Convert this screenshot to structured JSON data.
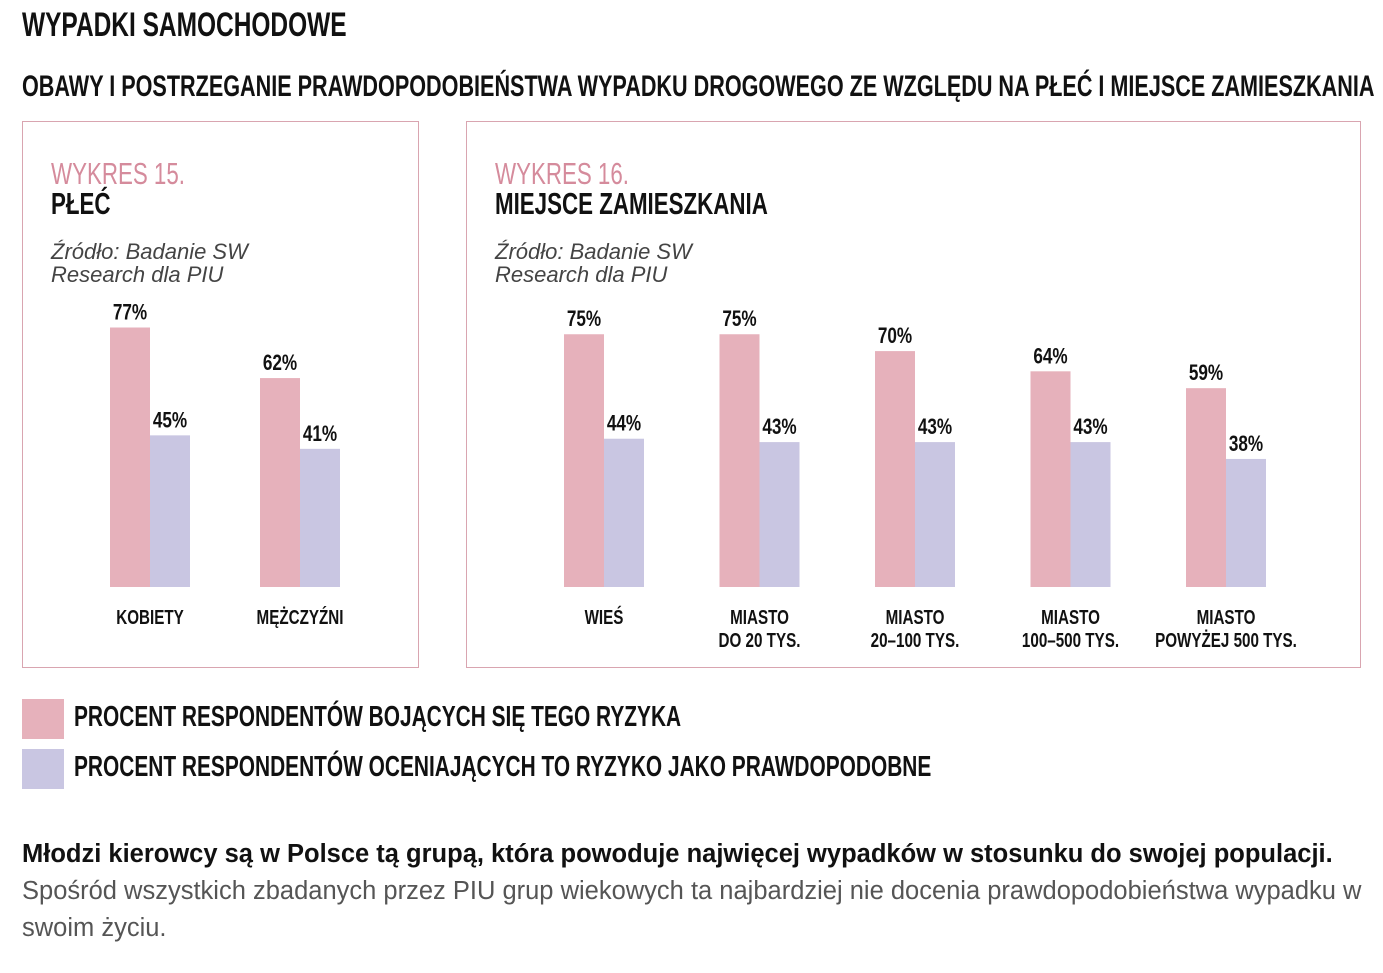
{
  "header": {
    "title": "WYPADKI SAMOCHODOWE",
    "subtitle": "OBAWY I POSTRZEGANIE PRAWDOPODOBIEŃSTWA WYPADKU DROGOWEGO ZE WZGLĘDU NA PŁEĆ I MIEJSCE ZAMIESZKANIA"
  },
  "panels": [
    {
      "number": "WYKRES 15.",
      "name": "PŁEĆ",
      "source_lines": [
        "Źródło: Badanie SW",
        "Research dla PIU"
      ]
    },
    {
      "number": "WYKRES 16.",
      "name": "MIEJSCE ZAMIESZKANIA",
      "source_lines": [
        "Źródło: Badanie SW",
        "Research dla PIU"
      ]
    }
  ],
  "colors": {
    "fear": "#e6b1bb",
    "probable": "#c9c6e2",
    "accent": "#d58b9c",
    "border": "#d9a5b0"
  },
  "chart_data": [
    {
      "type": "bar",
      "title": "WYKRES 15. PŁEĆ",
      "categories": [
        [
          "KOBIETY"
        ],
        [
          "MĘŻCZYŹNI"
        ]
      ],
      "series": [
        {
          "name": "PROCENT RESPONDENTÓW BOJĄCYCH SIĘ TEGO RYZYKA",
          "values": [
            77,
            62
          ],
          "labels": [
            "77%",
            "62%"
          ]
        },
        {
          "name": "PROCENT RESPONDENTÓW OCENIAJĄCYCH TO RYZYKO JAKO PRAWDOPODOBNE",
          "values": [
            45,
            41
          ],
          "labels": [
            "45%",
            "41%"
          ]
        }
      ],
      "ylim": [
        0,
        100
      ]
    },
    {
      "type": "bar",
      "title": "WYKRES 16. MIEJSCE ZAMIESZKANIA",
      "categories": [
        [
          "WIEŚ"
        ],
        [
          "MIASTO",
          "DO 20 TYS."
        ],
        [
          "MIASTO",
          "20–100 TYS."
        ],
        [
          "MIASTO",
          "100–500 TYS."
        ],
        [
          "MIASTO",
          "POWYŻEJ 500 TYS."
        ]
      ],
      "series": [
        {
          "name": "PROCENT RESPONDENTÓW BOJĄCYCH SIĘ TEGO RYZYKA",
          "values": [
            75,
            75,
            70,
            64,
            59
          ],
          "labels": [
            "75%",
            "75%",
            "70%",
            "64%",
            "59%"
          ]
        },
        {
          "name": "PROCENT RESPONDENTÓW OCENIAJĄCYCH TO RYZYKO JAKO PRAWDOPODOBNE",
          "values": [
            44,
            43,
            43,
            43,
            38
          ],
          "labels": [
            "44%",
            "43%",
            "43%",
            "43%",
            "38%"
          ]
        }
      ],
      "ylim": [
        0,
        100
      ]
    }
  ],
  "legend": [
    {
      "label": "PROCENT RESPONDENTÓW BOJĄCYCH SIĘ TEGO RYZYKA"
    },
    {
      "label": "PROCENT RESPONDENTÓW OCENIAJĄCYCH TO RYZYKO JAKO PRAWDOPODOBNE"
    }
  ],
  "footer": {
    "bold": "Młodzi kierowcy są w Polsce tą grupą, która powoduje najwięcej wypadków w stosunku do swojej populacji.",
    "regular": "Spośród wszystkich zbadanych przez PIU grup wiekowych ta najbardziej nie docenia prawdopodobieństwa wypadku w swoim życiu."
  }
}
